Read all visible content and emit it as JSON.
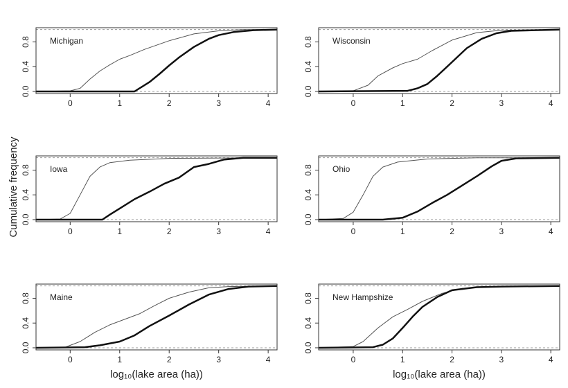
{
  "ylabel": "Cumulative frequency",
  "chart_data": [
    {
      "type": "line",
      "title": "Michigan",
      "xlim": [
        -0.69,
        4.18
      ],
      "ylim": [
        -0.034,
        1.03
      ],
      "xticks": [
        0,
        1,
        2,
        3,
        4
      ],
      "yticks": [
        {
          "value": 0,
          "label": "0.0"
        },
        0.4,
        0.8
      ],
      "hlines": [
        0,
        1
      ],
      "grid": false,
      "series": [
        {
          "color": "#555555",
          "line_width": 1,
          "x": [
            -0.69,
            0,
            0.2,
            0.4,
            0.6,
            0.8,
            1,
            1.2,
            1.5,
            2,
            2.5,
            3,
            3.5,
            4.18
          ],
          "values": [
            0,
            0.01,
            0.05,
            0.2,
            0.33,
            0.43,
            0.52,
            0.58,
            0.68,
            0.82,
            0.93,
            0.98,
            1,
            1
          ]
        },
        {
          "color": "#111111",
          "line_width": 2.5,
          "x": [
            -0.69,
            1.3,
            1.4,
            1.6,
            1.8,
            2,
            2.2,
            2.5,
            2.8,
            3,
            3.3,
            3.7,
            4.18
          ],
          "values": [
            0,
            0,
            0.05,
            0.15,
            0.28,
            0.42,
            0.55,
            0.72,
            0.85,
            0.91,
            0.96,
            0.99,
            1
          ]
        }
      ]
    },
    {
      "type": "line",
      "title": "Wisconsin",
      "xlim": [
        -0.7,
        4.18
      ],
      "ylim": [
        -0.034,
        1.03
      ],
      "xticks": [
        0,
        1,
        2,
        3,
        4
      ],
      "yticks": [
        {
          "value": 0,
          "label": "0.0"
        },
        0.4,
        0.8
      ],
      "hlines": [
        0,
        1
      ],
      "grid": false,
      "series": [
        {
          "color": "#555555",
          "line_width": 1,
          "x": [
            -0.7,
            0,
            0.3,
            0.5,
            0.8,
            1,
            1.3,
            1.6,
            2,
            2.5,
            3,
            4.18
          ],
          "values": [
            0,
            0.01,
            0.1,
            0.25,
            0.38,
            0.45,
            0.52,
            0.66,
            0.83,
            0.95,
            0.99,
            1
          ]
        },
        {
          "color": "#111111",
          "line_width": 2.5,
          "x": [
            -0.7,
            1.1,
            1.3,
            1.5,
            1.7,
            1.9,
            2.1,
            2.3,
            2.6,
            2.9,
            3.2,
            4.18
          ],
          "values": [
            0,
            0.01,
            0.05,
            0.12,
            0.25,
            0.4,
            0.55,
            0.7,
            0.85,
            0.94,
            0.98,
            1
          ]
        }
      ]
    },
    {
      "type": "line",
      "title": "Iowa",
      "xlim": [
        -0.69,
        4.18
      ],
      "ylim": [
        -0.034,
        1.03
      ],
      "xticks": [
        0,
        1,
        2,
        3,
        4
      ],
      "yticks": [
        {
          "value": 0,
          "label": "0.0"
        },
        0.4,
        0.8
      ],
      "hlines": [
        0,
        1
      ],
      "grid": false,
      "series": [
        {
          "color": "#555555",
          "line_width": 1,
          "x": [
            -0.69,
            -0.2,
            0,
            0.2,
            0.4,
            0.6,
            0.8,
            1.2,
            2,
            4.18
          ],
          "values": [
            0,
            0.01,
            0.1,
            0.4,
            0.7,
            0.85,
            0.92,
            0.96,
            0.99,
            1
          ]
        },
        {
          "color": "#111111",
          "line_width": 2.5,
          "x": [
            -0.69,
            0.65,
            0.8,
            1,
            1.3,
            1.6,
            1.9,
            2.2,
            2.5,
            2.8,
            3.1,
            3.5,
            4.18
          ],
          "values": [
            0,
            0,
            0.08,
            0.18,
            0.33,
            0.45,
            0.58,
            0.68,
            0.85,
            0.9,
            0.97,
            1,
            1
          ]
        }
      ]
    },
    {
      "type": "line",
      "title": "Ohio",
      "xlim": [
        -0.7,
        4.18
      ],
      "ylim": [
        -0.034,
        1.03
      ],
      "xticks": [
        0,
        1,
        2,
        3,
        4
      ],
      "yticks": [
        {
          "value": 0,
          "label": "0.0"
        },
        0.4,
        0.8
      ],
      "hlines": [
        0,
        1
      ],
      "grid": false,
      "series": [
        {
          "color": "#555555",
          "line_width": 1,
          "x": [
            -0.7,
            -0.2,
            0,
            0.2,
            0.4,
            0.6,
            0.9,
            1.5,
            2.5,
            4.18
          ],
          "values": [
            0,
            0.02,
            0.12,
            0.4,
            0.7,
            0.85,
            0.93,
            0.98,
            1,
            1
          ]
        },
        {
          "color": "#111111",
          "line_width": 2.5,
          "x": [
            -0.7,
            0.6,
            1,
            1.3,
            1.6,
            1.9,
            2.2,
            2.5,
            2.8,
            3,
            3.3,
            4.18
          ],
          "values": [
            0,
            0,
            0.03,
            0.13,
            0.27,
            0.4,
            0.55,
            0.7,
            0.86,
            0.95,
            0.99,
            1
          ]
        }
      ]
    },
    {
      "type": "line",
      "title": "Maine",
      "xlabel": "log₁₀(lake area (ha))",
      "xlim": [
        -0.69,
        4.18
      ],
      "ylim": [
        -0.034,
        1.03
      ],
      "xticks": [
        0,
        1,
        2,
        3,
        4
      ],
      "yticks": [
        {
          "value": 0,
          "label": "0.0"
        },
        0.4,
        0.8
      ],
      "hlines": [
        0,
        1
      ],
      "grid": false,
      "series": [
        {
          "color": "#555555",
          "line_width": 1,
          "x": [
            -0.69,
            -0.1,
            0.2,
            0.5,
            0.8,
            1.1,
            1.4,
            1.7,
            2,
            2.4,
            2.8,
            3.2,
            4.18
          ],
          "values": [
            0,
            0.01,
            0.1,
            0.25,
            0.37,
            0.46,
            0.55,
            0.68,
            0.8,
            0.9,
            0.97,
            0.99,
            1
          ]
        },
        {
          "color": "#111111",
          "line_width": 2.5,
          "x": [
            -0.69,
            0.3,
            0.6,
            1,
            1.3,
            1.6,
            2,
            2.4,
            2.8,
            3.2,
            3.6,
            4.18
          ],
          "values": [
            0,
            0.01,
            0.04,
            0.1,
            0.2,
            0.35,
            0.52,
            0.7,
            0.86,
            0.95,
            0.99,
            1
          ]
        }
      ]
    },
    {
      "type": "line",
      "title": "New Hampshize",
      "xlabel": "log₁₀(lake area (ha))",
      "xlim": [
        -0.7,
        4.18
      ],
      "ylim": [
        -0.034,
        1.03
      ],
      "xticks": [
        0,
        1,
        2,
        3,
        4
      ],
      "yticks": [
        {
          "value": 0,
          "label": "0.0"
        },
        0.4,
        0.8
      ],
      "hlines": [
        0,
        1
      ],
      "grid": false,
      "series": [
        {
          "color": "#555555",
          "line_width": 1,
          "x": [
            -0.7,
            0,
            0.2,
            0.5,
            0.8,
            1.1,
            1.4,
            1.8,
            2.2,
            2.8,
            4.18
          ],
          "values": [
            0,
            0.02,
            0.1,
            0.32,
            0.5,
            0.62,
            0.75,
            0.88,
            0.96,
            0.99,
            1
          ]
        },
        {
          "color": "#111111",
          "line_width": 2.5,
          "x": [
            -0.7,
            0.4,
            0.6,
            0.8,
            1,
            1.2,
            1.4,
            1.7,
            2,
            2.5,
            3,
            4.18
          ],
          "values": [
            0,
            0.01,
            0.05,
            0.15,
            0.32,
            0.5,
            0.66,
            0.82,
            0.93,
            0.98,
            0.99,
            1
          ]
        }
      ]
    }
  ]
}
